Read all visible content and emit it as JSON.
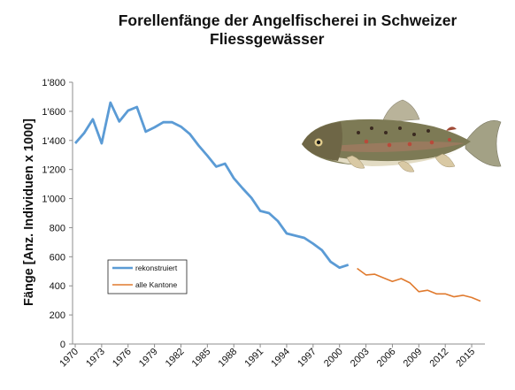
{
  "chart_data": {
    "type": "line",
    "title_line1": "Forellenfänge der Angelfischerei in Schweizer",
    "title_line2": "Fliessgewässer",
    "xlabel": "",
    "ylabel": "Fänge [Anz. Individuen x 1000]",
    "ylim": [
      0,
      1800
    ],
    "xlim": [
      1970,
      2016
    ],
    "y_ticks": [
      0,
      200,
      400,
      600,
      800,
      1000,
      1200,
      1400,
      1600,
      1800
    ],
    "y_tick_labels": [
      "0",
      "200",
      "400",
      "600",
      "800",
      "1'000",
      "1'200",
      "1'400",
      "1'600",
      "1'800"
    ],
    "x_ticks": [
      1970,
      1973,
      1976,
      1979,
      1982,
      1985,
      1988,
      1991,
      1994,
      1997,
      2000,
      2003,
      2006,
      2009,
      2012,
      2015
    ],
    "x_tick_labels": [
      "1970",
      "1973",
      "1976",
      "1979",
      "1982",
      "1985",
      "1988",
      "1991",
      "1994",
      "1997",
      "2000",
      "2003",
      "2006",
      "2009",
      "2012",
      "2015"
    ],
    "grid": false,
    "legend_position": "lower-left",
    "series": [
      {
        "name": "rekonstruiert",
        "color": "#5b9bd5",
        "x": [
          1970,
          1971,
          1972,
          1973,
          1974,
          1975,
          1976,
          1977,
          1978,
          1979,
          1980,
          1981,
          1982,
          1983,
          1984,
          1985,
          1986,
          1987,
          1988,
          1989,
          1990,
          1991,
          1992,
          1993,
          1994,
          1995,
          1996,
          1997,
          1998,
          1999,
          2000,
          2001
        ],
        "values": [
          1380,
          1450,
          1545,
          1380,
          1660,
          1530,
          1605,
          1630,
          1460,
          1490,
          1525,
          1525,
          1495,
          1445,
          1365,
          1295,
          1220,
          1240,
          1140,
          1070,
          1005,
          915,
          900,
          845,
          760,
          745,
          730,
          690,
          645,
          565,
          525,
          545
        ]
      },
      {
        "name": "alle Kantone",
        "color": "#e07a2e",
        "x": [
          2002,
          2003,
          2004,
          2005,
          2006,
          2007,
          2008,
          2009,
          2010,
          2011,
          2012,
          2013,
          2014,
          2015,
          2016
        ],
        "values": [
          520,
          475,
          480,
          455,
          430,
          450,
          420,
          360,
          370,
          345,
          345,
          325,
          335,
          320,
          295
        ]
      }
    ]
  },
  "image": {
    "fish_icon": "trout-icon"
  }
}
